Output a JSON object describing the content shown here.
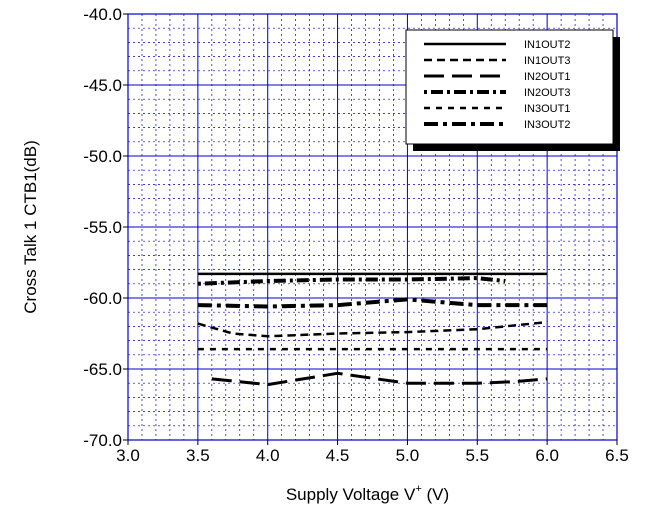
{
  "chart_data": {
    "type": "line",
    "title": "",
    "xlabel_main": "Supply Voltage  V",
    "xlabel_sup": "+",
    "xlabel_unit": " (V)",
    "ylabel": "Cross Talk 1  CTB1(dB)",
    "xlim": [
      3.0,
      6.5
    ],
    "ylim": [
      -70.0,
      -40.0
    ],
    "xticks": [
      3.0,
      3.5,
      4.0,
      4.5,
      5.0,
      5.5,
      6.0,
      6.5
    ],
    "xtick_labels": [
      "3.0",
      "3.5",
      "4.0",
      "4.5",
      "5.0",
      "5.5",
      "6.0",
      "6.5"
    ],
    "yticks": [
      -70.0,
      -65.0,
      -60.0,
      -55.0,
      -50.0,
      -45.0,
      -40.0
    ],
    "ytick_labels": [
      "-70.0",
      "-65.0",
      "-60.0",
      "-55.0",
      "-50.0",
      "-45.0",
      "-40.0"
    ],
    "grid": true,
    "legend_position": "top-right",
    "series": [
      {
        "name": "IN1OUT2",
        "style": "solid",
        "x": [
          3.5,
          4.0,
          4.5,
          5.0,
          5.5,
          6.0
        ],
        "y": [
          -58.3,
          -58.3,
          -58.3,
          -58.3,
          -58.3,
          -58.3
        ]
      },
      {
        "name": "IN1OUT3",
        "style": "dash",
        "x": [
          3.5,
          3.75,
          4.0,
          4.5,
          5.0,
          5.5,
          6.0
        ],
        "y": [
          -61.8,
          -62.5,
          -62.7,
          -62.5,
          -62.4,
          -62.2,
          -61.7
        ]
      },
      {
        "name": "IN2OUT1",
        "style": "longdash",
        "x": [
          3.6,
          4.0,
          4.5,
          5.0,
          5.5,
          5.75,
          6.0
        ],
        "y": [
          -65.7,
          -66.1,
          -65.3,
          -66.0,
          -66.0,
          -65.9,
          -65.7
        ]
      },
      {
        "name": "IN2OUT3",
        "style": "dotdash",
        "x": [
          3.5,
          4.0,
          4.5,
          5.0,
          5.5,
          5.7
        ],
        "y": [
          -59.0,
          -58.8,
          -58.7,
          -58.7,
          -58.6,
          -58.8
        ]
      },
      {
        "name": "IN3OUT1",
        "style": "shortdash",
        "x": [
          3.5,
          4.0,
          4.5,
          5.0,
          5.5,
          6.0
        ],
        "y": [
          -63.6,
          -63.6,
          -63.6,
          -63.6,
          -63.6,
          -63.6
        ]
      },
      {
        "name": "IN3OUT2",
        "style": "dashdot",
        "x": [
          3.5,
          4.0,
          4.5,
          5.0,
          5.5,
          6.0
        ],
        "y": [
          -60.5,
          -60.6,
          -60.5,
          -60.1,
          -60.5,
          -60.5
        ]
      }
    ]
  }
}
